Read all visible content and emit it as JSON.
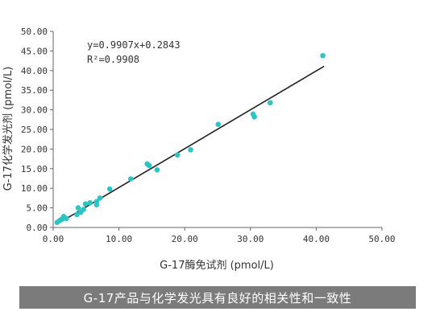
{
  "chart_data": {
    "type": "scatter",
    "xlabel": "G-17酶免试剂 (pmol/L)",
    "ylabel": "G-17化学发光剂 (pmol/L)",
    "xlim": [
      0,
      50
    ],
    "ylim": [
      0,
      50
    ],
    "x_ticks": [
      "0.00",
      "10.00",
      "20.00",
      "30.00",
      "40.00",
      "50.00"
    ],
    "y_ticks": [
      "0.00",
      "5.00",
      "10.00",
      "15.00",
      "20.00",
      "25.00",
      "30.00",
      "35.00",
      "40.00",
      "45.00",
      "50.00"
    ],
    "grid": false,
    "legend": "none",
    "marker_color": "#2ec4c4",
    "trendline": {
      "type": "linear",
      "slope": 0.9907,
      "intercept": 0.2843,
      "x_range": [
        0.5,
        41.2
      ],
      "color": "#222222"
    },
    "annotations": {
      "equation": "y=0.9907x+0.2843",
      "r_squared": "R²=0.9908"
    },
    "points": [
      {
        "x": 0.6,
        "y": 1.3
      },
      {
        "x": 1.0,
        "y": 1.8
      },
      {
        "x": 1.3,
        "y": 2.1
      },
      {
        "x": 1.6,
        "y": 2.8
      },
      {
        "x": 2.0,
        "y": 2.3
      },
      {
        "x": 3.6,
        "y": 3.3
      },
      {
        "x": 3.8,
        "y": 5.0
      },
      {
        "x": 4.2,
        "y": 3.9
      },
      {
        "x": 4.6,
        "y": 4.6
      },
      {
        "x": 4.9,
        "y": 6.0
      },
      {
        "x": 5.6,
        "y": 6.3
      },
      {
        "x": 6.6,
        "y": 6.6
      },
      {
        "x": 6.6,
        "y": 5.8
      },
      {
        "x": 7.1,
        "y": 7.5
      },
      {
        "x": 8.6,
        "y": 9.8
      },
      {
        "x": 11.8,
        "y": 12.4
      },
      {
        "x": 14.3,
        "y": 16.2
      },
      {
        "x": 14.6,
        "y": 15.8
      },
      {
        "x": 15.8,
        "y": 14.7
      },
      {
        "x": 18.9,
        "y": 18.5
      },
      {
        "x": 20.9,
        "y": 19.8
      },
      {
        "x": 25.1,
        "y": 26.3
      },
      {
        "x": 30.4,
        "y": 28.9
      },
      {
        "x": 30.6,
        "y": 28.2
      },
      {
        "x": 33.0,
        "y": 31.8
      },
      {
        "x": 41.0,
        "y": 43.8
      }
    ]
  },
  "caption": "G-17产品与化学发光具有良好的相关性和一致性"
}
